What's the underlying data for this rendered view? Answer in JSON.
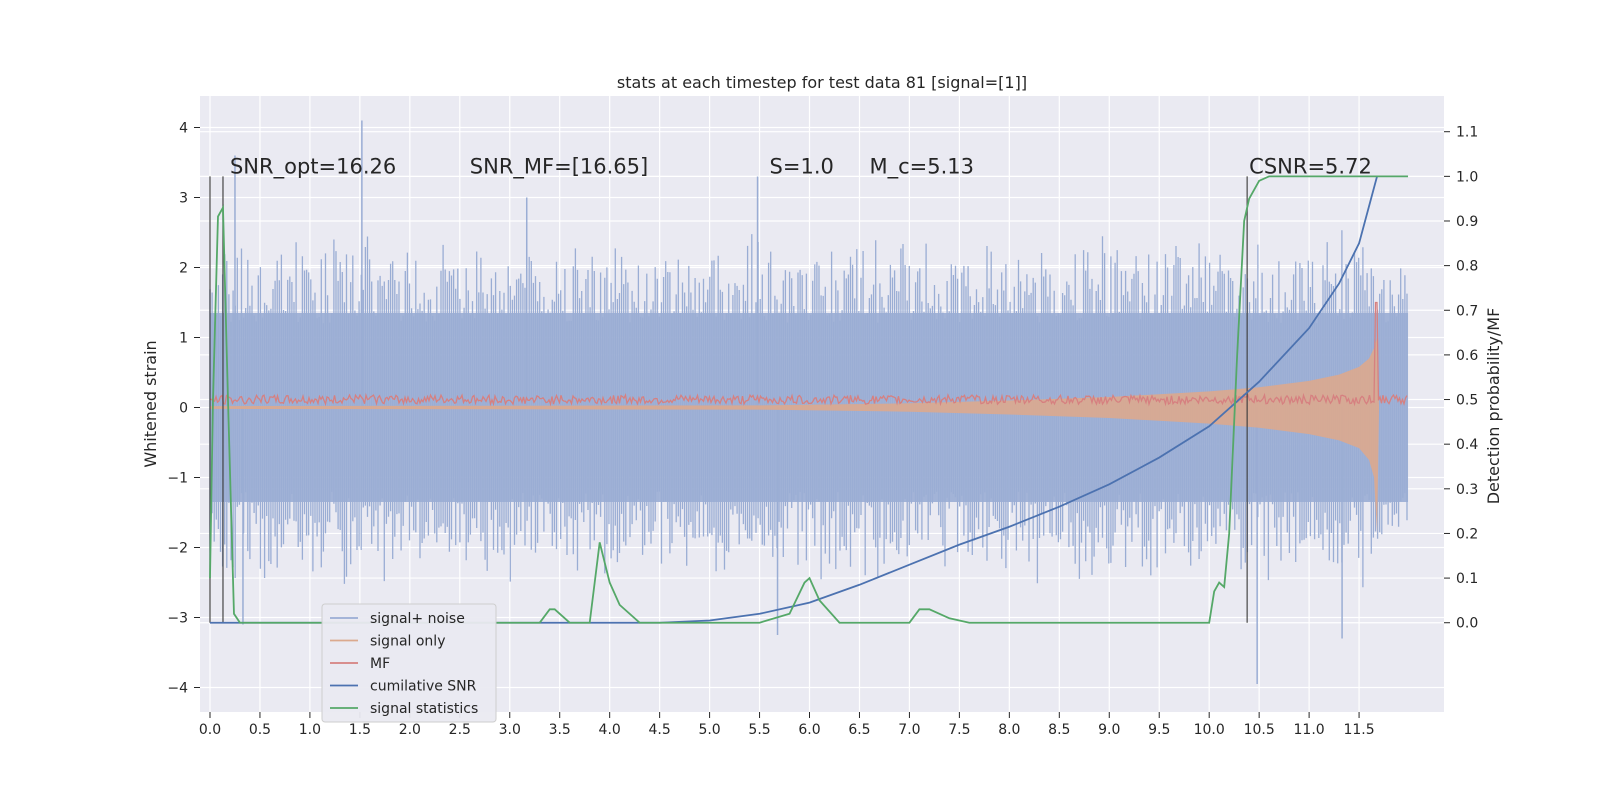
{
  "chart_data": {
    "type": "line",
    "title": "stats at each timestep for test data 81 [signal=[1]]",
    "xlabel": "",
    "ylabel": "Whitened strain",
    "ylabel_right": "Detection probability/MF",
    "xlim": [
      -0.1,
      12.35
    ],
    "ylim": [
      -4.35,
      4.45
    ],
    "ylim_right": [
      -0.2,
      1.18
    ],
    "x_ticks": [
      0.0,
      0.5,
      1.0,
      1.5,
      2.0,
      2.5,
      3.0,
      3.5,
      4.0,
      4.5,
      5.0,
      5.5,
      6.0,
      6.5,
      7.0,
      7.5,
      8.0,
      8.5,
      9.0,
      9.5,
      10.0,
      10.5,
      11.0,
      11.5
    ],
    "x_tick_labels": [
      "0.0",
      "0.5",
      "1.0",
      "1.5",
      "2.0",
      "2.5",
      "3.0",
      "3.5",
      "4.0",
      "4.5",
      "5.0",
      "5.5",
      "6.0",
      "6.5",
      "7.0",
      "7.5",
      "8.0",
      "8.5",
      "9.0",
      "9.5",
      "10.0",
      "10.5",
      "11.0",
      "11.5"
    ],
    "y_ticks": [
      -4,
      -3,
      -2,
      -1,
      0,
      1,
      2,
      3,
      4
    ],
    "y_tick_labels": [
      "−4",
      "−3",
      "−2",
      "−1",
      "0",
      "1",
      "2",
      "3",
      "4"
    ],
    "y_ticks_right": [
      0.0,
      0.1,
      0.2,
      0.3,
      0.4,
      0.5,
      0.6,
      0.7,
      0.8,
      0.9,
      1.0,
      1.1
    ],
    "y_tick_labels_right": [
      "0.0",
      "0.1",
      "0.2",
      "0.3",
      "0.4",
      "0.5",
      "0.6",
      "0.7",
      "0.8",
      "0.9",
      "1.0",
      "1.1"
    ],
    "grid": true,
    "legend_position": "lower-left",
    "annotations": [
      {
        "text": "SNR_opt=16.26",
        "x": 0.2,
        "y_right": 1.0
      },
      {
        "text": "SNR_MF=[16.65]",
        "x": 2.6,
        "y_right": 1.0
      },
      {
        "text": "S=1.0",
        "x": 5.6,
        "y_right": 1.0
      },
      {
        "text": "M_c=5.13",
        "x": 6.6,
        "y_right": 1.0
      },
      {
        "text": "CSNR=5.72",
        "x": 10.4,
        "y_right": 1.0
      }
    ],
    "vertical_lines_x": [
      0.0,
      0.13,
      10.38
    ],
    "series": [
      {
        "name": "signal+ noise",
        "axis": "left",
        "color": "#9aadd4",
        "envelope": {
          "x": [
            0.0,
            0.5,
            1.0,
            1.5,
            2.0,
            2.5,
            3.0,
            3.5,
            4.0,
            4.5,
            5.0,
            5.5,
            6.0,
            6.5,
            7.0,
            7.5,
            8.0,
            8.5,
            9.0,
            9.5,
            10.0,
            10.5,
            11.0,
            11.5,
            11.99
          ],
          "upper": [
            2.7,
            2.6,
            2.5,
            2.7,
            2.4,
            2.5,
            2.6,
            2.4,
            2.6,
            2.5,
            2.3,
            2.7,
            2.4,
            2.5,
            2.6,
            2.3,
            2.5,
            2.4,
            2.7,
            2.5,
            2.6,
            2.4,
            2.5,
            2.6,
            2.2
          ],
          "lower": [
            -2.8,
            -2.5,
            -2.6,
            -2.6,
            -2.6,
            -2.5,
            -2.7,
            -2.5,
            -2.5,
            -2.6,
            -2.4,
            -2.7,
            -2.6,
            -2.5,
            -2.6,
            -2.4,
            -2.6,
            -2.5,
            -2.6,
            -2.7,
            -2.5,
            -2.6,
            -2.6,
            -2.8,
            -2.0
          ]
        },
        "spikes": [
          [
            1.52,
            4.1
          ],
          [
            0.25,
            3.6
          ],
          [
            10.48,
            -3.95
          ],
          [
            11.33,
            -3.3
          ],
          [
            5.68,
            -3.25
          ],
          [
            0.33,
            -3.1
          ],
          [
            3.17,
            3.0
          ],
          [
            5.48,
            3.3
          ]
        ]
      },
      {
        "name": "signal only",
        "axis": "left",
        "color": "#dba98e",
        "x": [
          0.0,
          5.5,
          7.0,
          8.0,
          9.0,
          9.5,
          10.0,
          10.5,
          11.0,
          11.3,
          11.5,
          11.6,
          11.65,
          11.68,
          11.7
        ],
        "upper": [
          0.02,
          0.03,
          0.06,
          0.1,
          0.15,
          0.19,
          0.23,
          0.29,
          0.38,
          0.47,
          0.58,
          0.7,
          0.85,
          1.0,
          0.0
        ],
        "lower": [
          -0.02,
          -0.03,
          -0.06,
          -0.1,
          -0.15,
          -0.19,
          -0.23,
          -0.29,
          -0.38,
          -0.47,
          -0.58,
          -0.75,
          -1.0,
          -1.8,
          0.0
        ]
      },
      {
        "name": "MF",
        "axis": "left",
        "color": "#d68080",
        "baseline": 0.1,
        "noise_amplitude": 0.1,
        "peak": {
          "x": 11.67,
          "y": 1.5
        }
      },
      {
        "name": "cumilative SNR",
        "axis": "right",
        "color": "#4c72b0",
        "x": [
          0.0,
          4.5,
          5.0,
          5.5,
          6.0,
          6.5,
          7.0,
          7.5,
          8.0,
          8.5,
          9.0,
          9.5,
          10.0,
          10.5,
          11.0,
          11.3,
          11.5,
          11.68
        ],
        "y": [
          0.0,
          0.0,
          0.005,
          0.02,
          0.045,
          0.085,
          0.13,
          0.175,
          0.215,
          0.26,
          0.31,
          0.37,
          0.44,
          0.54,
          0.66,
          0.76,
          0.85,
          1.0
        ]
      },
      {
        "name": "signal statistics",
        "axis": "right",
        "color": "#55a868",
        "x": [
          0.0,
          0.03,
          0.08,
          0.13,
          0.18,
          0.24,
          0.3,
          0.4,
          1.0,
          3.3,
          3.4,
          3.45,
          3.6,
          3.8,
          3.9,
          4.0,
          4.1,
          4.3,
          4.5,
          5.5,
          5.8,
          5.95,
          6.0,
          6.1,
          6.3,
          7.0,
          7.1,
          7.2,
          7.4,
          7.6,
          8.5,
          9.5,
          10.0,
          10.05,
          10.1,
          10.15,
          10.2,
          10.28,
          10.35,
          10.4,
          10.5,
          10.6,
          10.8,
          11.99
        ],
        "y": [
          0.1,
          0.5,
          0.91,
          0.93,
          0.5,
          0.02,
          0.0,
          0.0,
          0.0,
          0.0,
          0.03,
          0.03,
          0.0,
          0.0,
          0.18,
          0.09,
          0.04,
          0.0,
          0.0,
          0.0,
          0.02,
          0.09,
          0.1,
          0.05,
          0.0,
          0.0,
          0.03,
          0.03,
          0.01,
          0.0,
          0.0,
          0.0,
          0.0,
          0.07,
          0.09,
          0.08,
          0.2,
          0.6,
          0.9,
          0.95,
          0.99,
          1.0,
          1.0,
          1.0
        ]
      }
    ]
  }
}
